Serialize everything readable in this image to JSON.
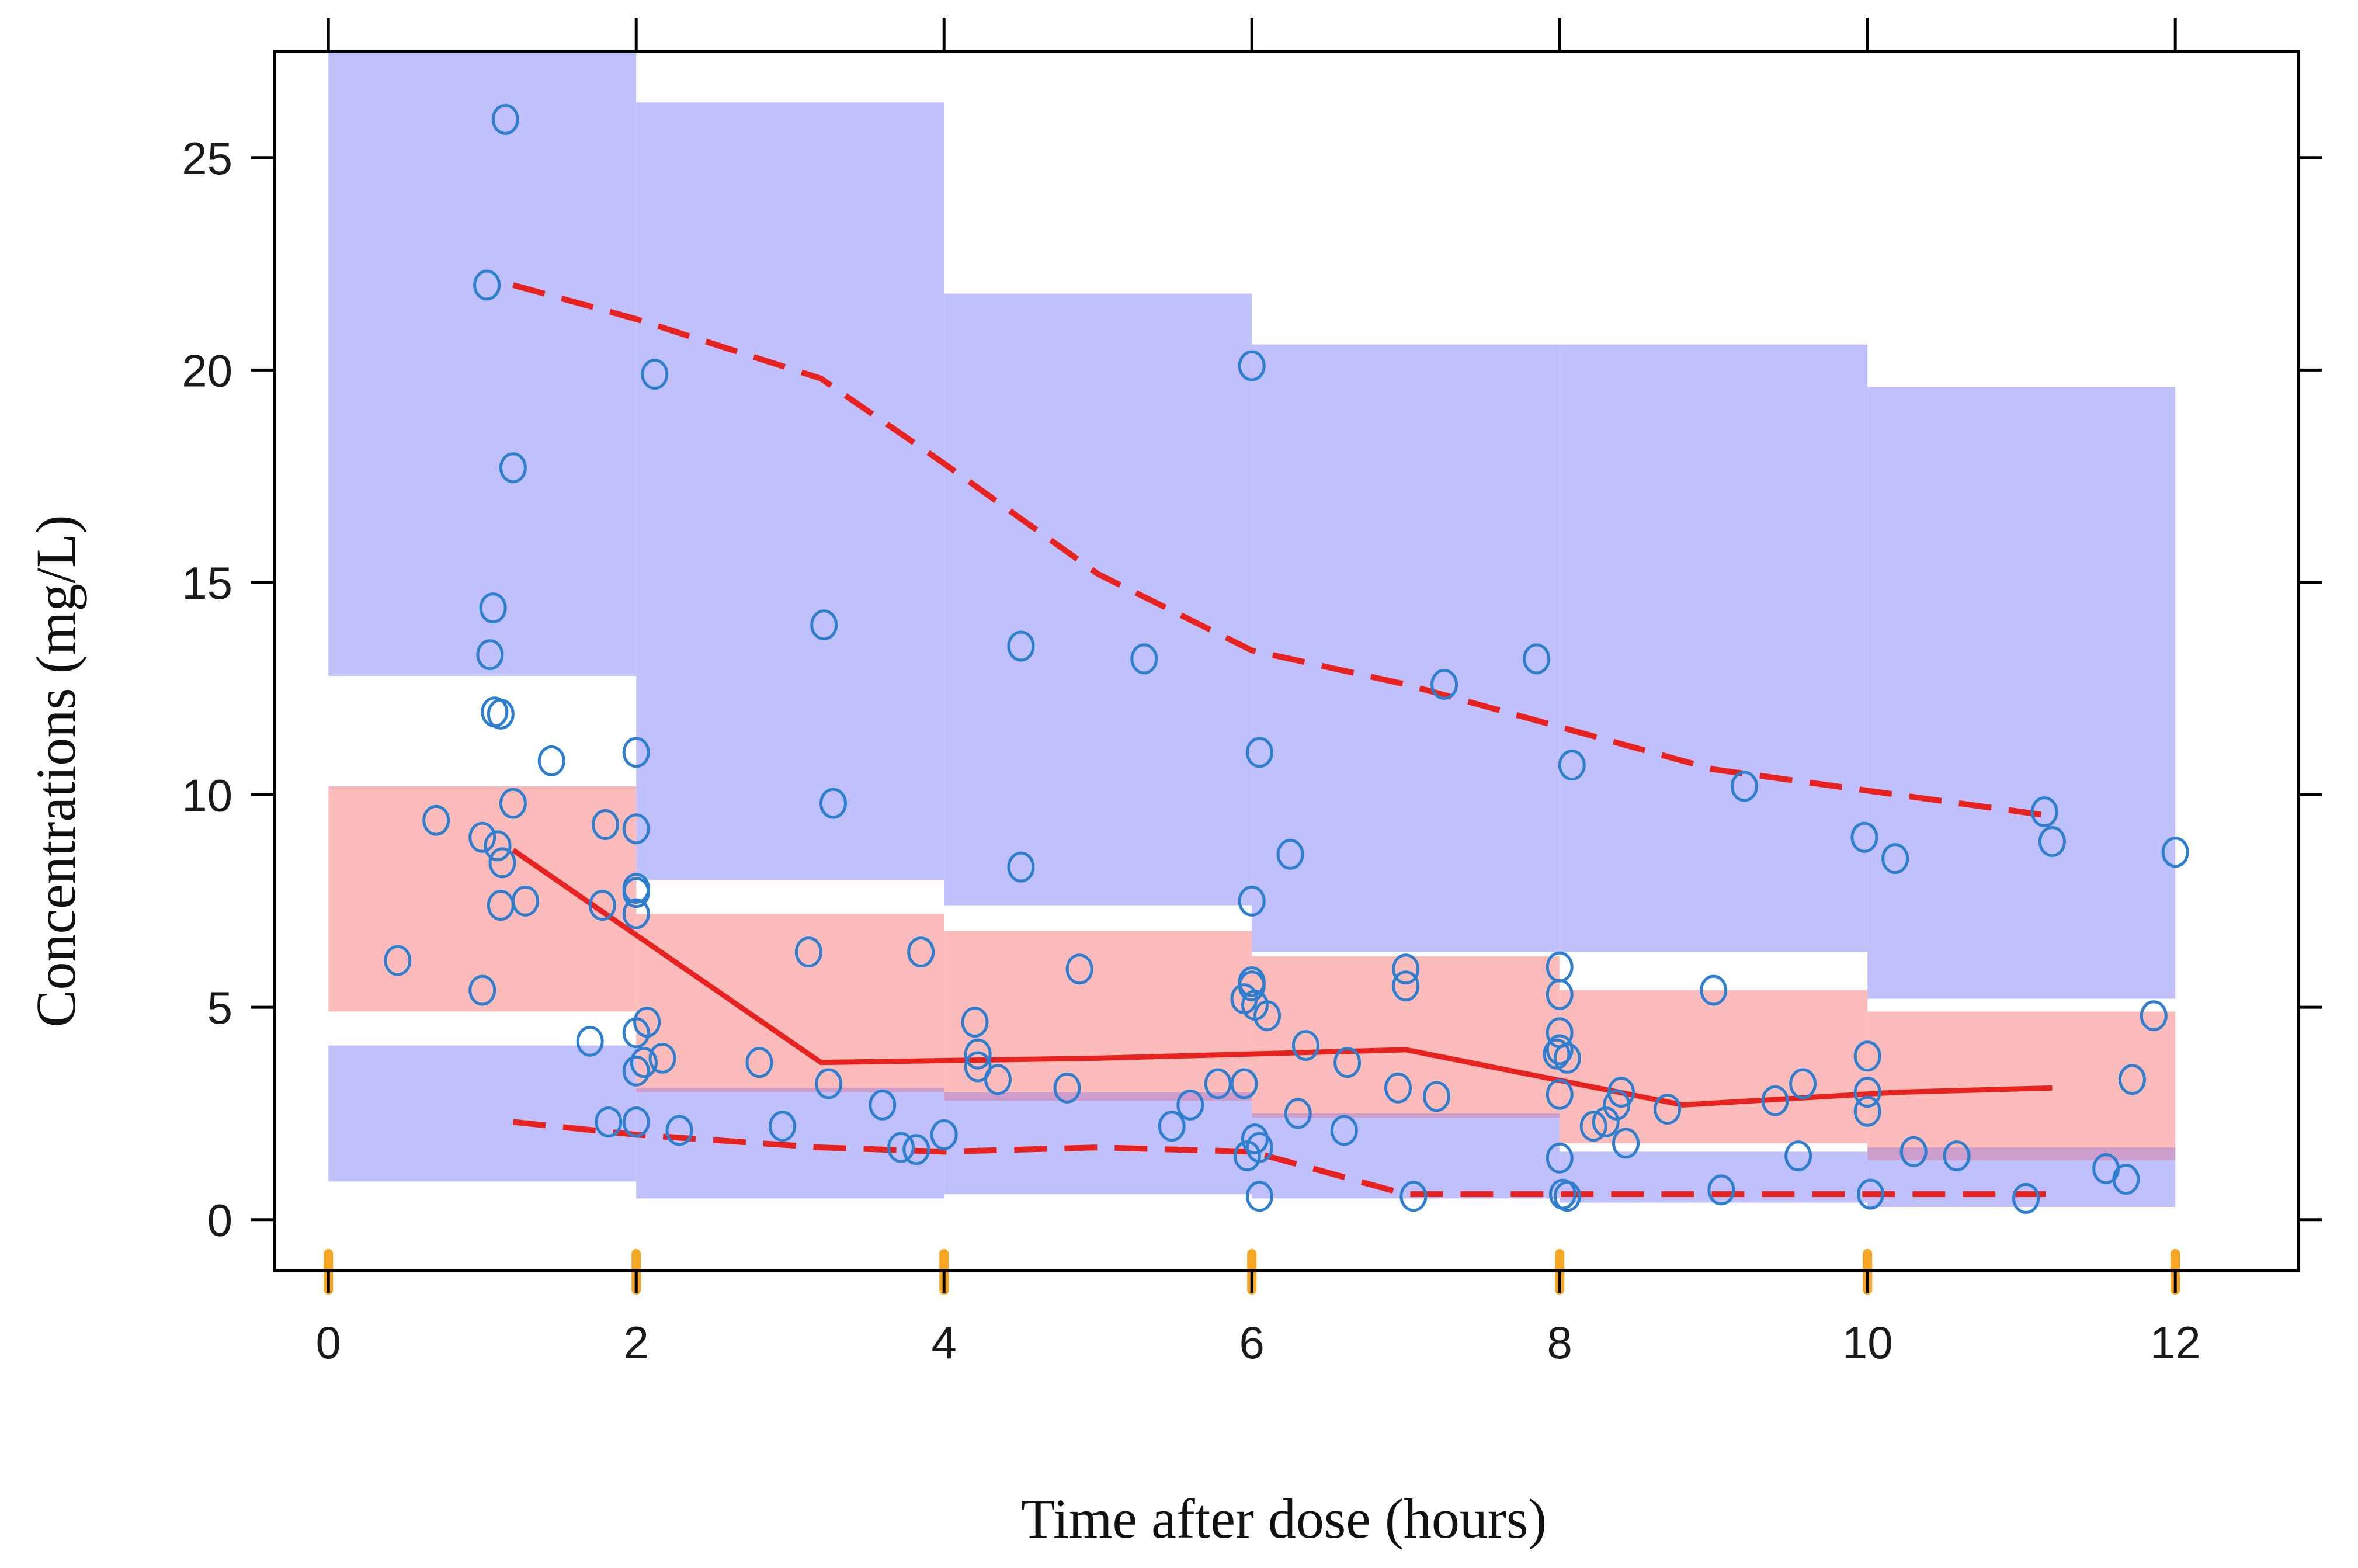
{
  "chart_data": {
    "type": "scatter",
    "title": "",
    "xlabel": "Time after dose (hours)",
    "ylabel": "Concentrations (mg/L)",
    "xlim": [
      -0.35,
      12.8
    ],
    "ylim": [
      -1.2,
      27.5
    ],
    "xticks": [
      0,
      2,
      4,
      6,
      8,
      10,
      12
    ],
    "yticks": [
      0,
      5,
      10,
      15,
      20,
      25
    ],
    "bins": [
      [
        0,
        2
      ],
      [
        2,
        4
      ],
      [
        4,
        6
      ],
      [
        6,
        8
      ],
      [
        8,
        10
      ],
      [
        10,
        12
      ]
    ],
    "colors": {
      "upper_band": "#c0c0fc",
      "lower_band": "#c0c0fc",
      "median_band": "#fcbcbc",
      "overlap_band": "#cd9ecd",
      "observed_points": "#2e7fd0",
      "median_line": "#e8231f",
      "percentile_lines": "#e8231f",
      "rug": "#f5a623",
      "axis": "#000000"
    },
    "series": [
      {
        "name": "Upper PI band (95th percentile CI)",
        "kind": "band",
        "lower": [
          12.8,
          8.0,
          7.4,
          6.3,
          6.3,
          5.2
        ],
        "upper": [
          27.5,
          26.3,
          21.8,
          20.6,
          20.6,
          19.6
        ]
      },
      {
        "name": "Median PI band (50th percentile CI)",
        "kind": "band",
        "lower": [
          4.9,
          3.0,
          2.8,
          2.4,
          1.8,
          1.4
        ],
        "upper": [
          10.2,
          7.2,
          6.8,
          6.2,
          5.4,
          4.9
        ]
      },
      {
        "name": "Lower PI band (5th percentile CI)",
        "kind": "band",
        "lower": [
          0.9,
          0.5,
          0.6,
          0.5,
          0.4,
          0.3
        ],
        "upper": [
          4.1,
          3.1,
          3.0,
          2.5,
          1.6,
          1.7
        ]
      },
      {
        "name": "Observed median",
        "kind": "line",
        "x": [
          1.2,
          3.2,
          5.0,
          7.0,
          8.8,
          10.2,
          11.2
        ],
        "y": [
          8.7,
          3.7,
          3.8,
          4.0,
          2.7,
          3.0,
          3.1
        ]
      },
      {
        "name": "Observed 95th percentile",
        "kind": "dashed-line",
        "x": [
          1.2,
          2.0,
          3.2,
          4.0,
          5.0,
          6.0,
          7.0,
          8.0,
          9.0,
          10.0,
          11.2
        ],
        "y": [
          22.0,
          21.2,
          19.8,
          17.8,
          15.2,
          13.4,
          12.6,
          11.6,
          10.6,
          10.1,
          9.5
        ]
      },
      {
        "name": "Observed 5th percentile",
        "kind": "dashed-line",
        "x": [
          1.2,
          2.0,
          3.2,
          4.0,
          5.0,
          6.0,
          7.0,
          8.0,
          9.0,
          10.0,
          11.2
        ],
        "y": [
          2.3,
          2.0,
          1.7,
          1.6,
          1.7,
          1.6,
          0.6,
          0.6,
          0.6,
          0.6,
          0.6
        ]
      },
      {
        "name": "Observed concentrations",
        "kind": "points",
        "points": [
          [
            0.45,
            6.1
          ],
          [
            0.7,
            9.4
          ],
          [
            1.0,
            9.0
          ],
          [
            1.0,
            5.4
          ],
          [
            1.03,
            22.0
          ],
          [
            1.05,
            13.3
          ],
          [
            1.07,
            14.4
          ],
          [
            1.08,
            11.95
          ],
          [
            1.1,
            8.8
          ],
          [
            1.12,
            11.9
          ],
          [
            1.12,
            7.4
          ],
          [
            1.13,
            8.4
          ],
          [
            1.15,
            25.9
          ],
          [
            1.2,
            17.7
          ],
          [
            1.2,
            9.8
          ],
          [
            1.28,
            7.5
          ],
          [
            1.45,
            10.8
          ],
          [
            1.7,
            4.2
          ],
          [
            1.78,
            7.4
          ],
          [
            1.8,
            9.3
          ],
          [
            1.82,
            2.3
          ],
          [
            2.0,
            11.0
          ],
          [
            2.0,
            9.2
          ],
          [
            2.0,
            7.8
          ],
          [
            2.0,
            7.7
          ],
          [
            2.0,
            7.2
          ],
          [
            2.0,
            4.4
          ],
          [
            2.0,
            3.5
          ],
          [
            2.0,
            2.3
          ],
          [
            2.05,
            3.7
          ],
          [
            2.07,
            4.65
          ],
          [
            2.12,
            19.9
          ],
          [
            2.17,
            3.8
          ],
          [
            2.28,
            2.1
          ],
          [
            2.8,
            3.7
          ],
          [
            2.95,
            2.2
          ],
          [
            3.12,
            6.3
          ],
          [
            3.22,
            14.0
          ],
          [
            3.25,
            3.2
          ],
          [
            3.28,
            9.8
          ],
          [
            3.6,
            2.7
          ],
          [
            3.72,
            1.7
          ],
          [
            3.82,
            1.65
          ],
          [
            3.85,
            6.3
          ],
          [
            4.0,
            2.0
          ],
          [
            4.2,
            4.65
          ],
          [
            4.22,
            3.9
          ],
          [
            4.22,
            3.6
          ],
          [
            4.35,
            3.3
          ],
          [
            4.5,
            13.5
          ],
          [
            4.5,
            8.3
          ],
          [
            4.8,
            3.1
          ],
          [
            4.88,
            5.9
          ],
          [
            5.3,
            13.2
          ],
          [
            5.48,
            2.2
          ],
          [
            5.6,
            2.7
          ],
          [
            5.78,
            3.2
          ],
          [
            5.95,
            3.2
          ],
          [
            5.95,
            5.2
          ],
          [
            5.97,
            1.5
          ],
          [
            6.0,
            20.1
          ],
          [
            6.0,
            7.5
          ],
          [
            6.0,
            5.6
          ],
          [
            6.0,
            5.5
          ],
          [
            6.02,
            5.05
          ],
          [
            6.02,
            1.9
          ],
          [
            6.05,
            1.7
          ],
          [
            6.05,
            0.55
          ],
          [
            6.05,
            11.0
          ],
          [
            6.1,
            4.8
          ],
          [
            6.25,
            8.6
          ],
          [
            6.3,
            2.5
          ],
          [
            6.35,
            4.1
          ],
          [
            6.6,
            2.1
          ],
          [
            6.62,
            3.7
          ],
          [
            6.95,
            3.1
          ],
          [
            7.0,
            5.9
          ],
          [
            7.0,
            5.5
          ],
          [
            7.05,
            0.55
          ],
          [
            7.2,
            2.9
          ],
          [
            7.25,
            12.6
          ],
          [
            7.85,
            13.2
          ],
          [
            7.98,
            3.9
          ],
          [
            8.0,
            5.95
          ],
          [
            8.0,
            5.3
          ],
          [
            8.0,
            4.4
          ],
          [
            8.0,
            4.0
          ],
          [
            8.0,
            2.95
          ],
          [
            8.0,
            1.45
          ],
          [
            8.02,
            0.6
          ],
          [
            8.05,
            0.55
          ],
          [
            8.05,
            3.8
          ],
          [
            8.08,
            10.7
          ],
          [
            8.22,
            2.2
          ],
          [
            8.3,
            2.3
          ],
          [
            8.37,
            2.7
          ],
          [
            8.4,
            3.0
          ],
          [
            8.43,
            1.8
          ],
          [
            8.7,
            2.6
          ],
          [
            9.0,
            5.4
          ],
          [
            9.05,
            0.7
          ],
          [
            9.2,
            10.2
          ],
          [
            9.4,
            2.8
          ],
          [
            9.55,
            1.5
          ],
          [
            9.58,
            3.2
          ],
          [
            9.98,
            9.0
          ],
          [
            10.0,
            3.85
          ],
          [
            10.0,
            3.0
          ],
          [
            10.0,
            2.55
          ],
          [
            10.02,
            0.6
          ],
          [
            10.18,
            8.5
          ],
          [
            10.3,
            1.6
          ],
          [
            10.58,
            1.5
          ],
          [
            11.03,
            0.5
          ],
          [
            11.15,
            9.6
          ],
          [
            11.2,
            8.9
          ],
          [
            11.55,
            1.2
          ],
          [
            11.68,
            0.95
          ],
          [
            11.72,
            3.3
          ],
          [
            11.86,
            4.8
          ],
          [
            12.0,
            8.65
          ]
        ]
      }
    ],
    "rug_x": [
      0,
      2,
      4,
      6,
      8,
      10,
      12
    ]
  }
}
